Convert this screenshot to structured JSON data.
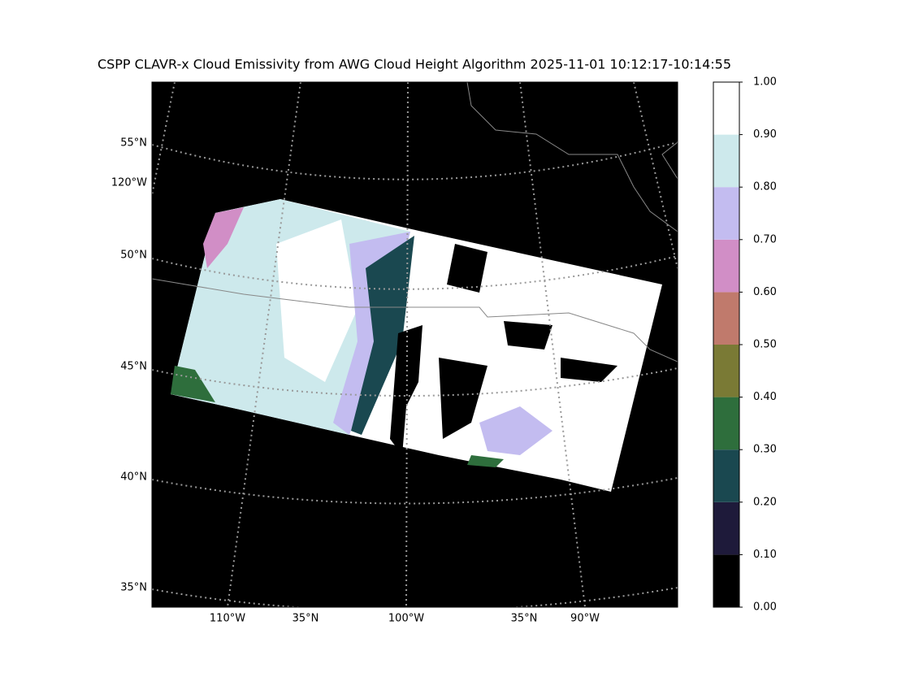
{
  "title": "CSPP CLAVR-x Cloud Emissivity from AWG Cloud Height Algorithm 2025-11-01 10:12:17-10:14:55",
  "map": {
    "left_labels": [
      "55°N",
      "120°W",
      "50°N",
      "45°N",
      "40°N",
      "35°N"
    ],
    "bottom_labels": [
      "110°W",
      "35°N",
      "100°W",
      "35°N",
      "90°W"
    ]
  },
  "colorbar": {
    "lim": [
      0,
      1
    ],
    "ticks": [
      {
        "value": 0,
        "label": "0.00"
      },
      {
        "value": 0.1,
        "label": "0.10"
      },
      {
        "value": 0.2,
        "label": "0.20"
      },
      {
        "value": 0.3,
        "label": "0.30"
      },
      {
        "value": 0.4,
        "label": "0.40"
      },
      {
        "value": 0.5,
        "label": "0.50"
      },
      {
        "value": 0.6,
        "label": "0.60"
      },
      {
        "value": 0.7,
        "label": "0.70"
      },
      {
        "value": 0.8,
        "label": "0.80"
      },
      {
        "value": 0.9,
        "label": "0.90"
      },
      {
        "value": 1,
        "label": "1.00"
      }
    ],
    "colors": [
      "#000000",
      "#1e1a3a",
      "#1a4850",
      "#2e6e3c",
      "#7a7a35",
      "#c07a6c",
      "#d18ec6",
      "#c3bcf0",
      "#cde9ec",
      "#ffffff"
    ]
  }
}
